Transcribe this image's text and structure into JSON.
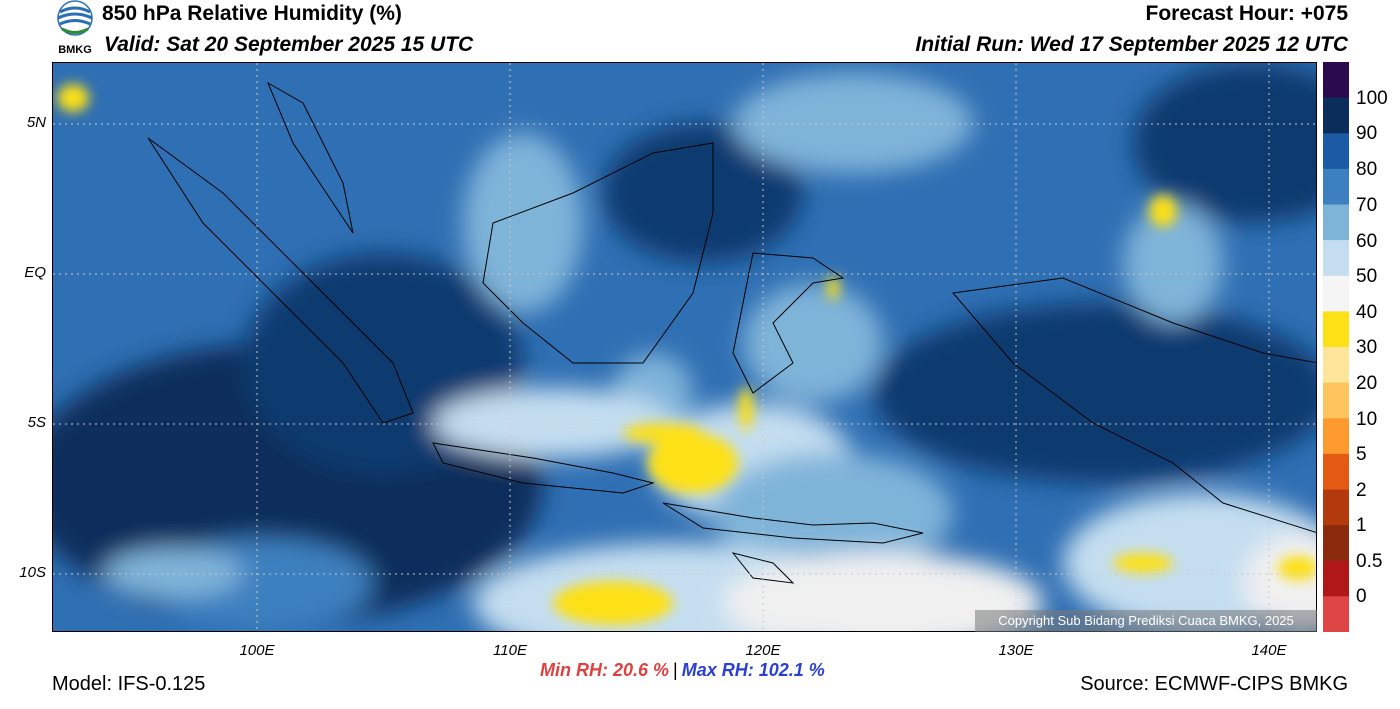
{
  "header": {
    "title": "850 hPa Relative Humidity (%)",
    "valid": "Valid: Sat 20 September 2025 15 UTC",
    "forecast_hour": "Forecast Hour: +075",
    "initial_run": "Initial Run: Wed 17 September 2025 12 UTC"
  },
  "logo": {
    "text": "BMKG"
  },
  "map": {
    "lat_labels": [
      "5N",
      "EQ",
      "5S",
      "10S"
    ],
    "lon_labels": [
      "100E",
      "110E",
      "120E",
      "130E",
      "140E"
    ],
    "copyright": "Copyright Sub Bidang Prediksi Cuaca BMKG, 2025"
  },
  "colorbar": {
    "labels": [
      "100",
      "90",
      "80",
      "70",
      "60",
      "50",
      "40",
      "30",
      "20",
      "10",
      "5",
      "2",
      "1",
      "0.5",
      "0"
    ],
    "colors": [
      "#2b0a4e",
      "#0b2d5b",
      "#1c5aa6",
      "#3c80bf",
      "#7fb4d9",
      "#c4def0",
      "#f5f5f5",
      "#fde015",
      "#fee59a",
      "#fec55f",
      "#fd9a2e",
      "#e55a12",
      "#b23a0d",
      "#8c2a0d",
      "#b01818",
      "#e04545"
    ]
  },
  "stats": {
    "min": "Min RH:  20.6 %",
    "separator": "|",
    "max": "Max RH: 102.1 %"
  },
  "footer": {
    "model": "Model: IFS-0.125",
    "source": "Source: ECMWF-CIPS BMKG"
  }
}
